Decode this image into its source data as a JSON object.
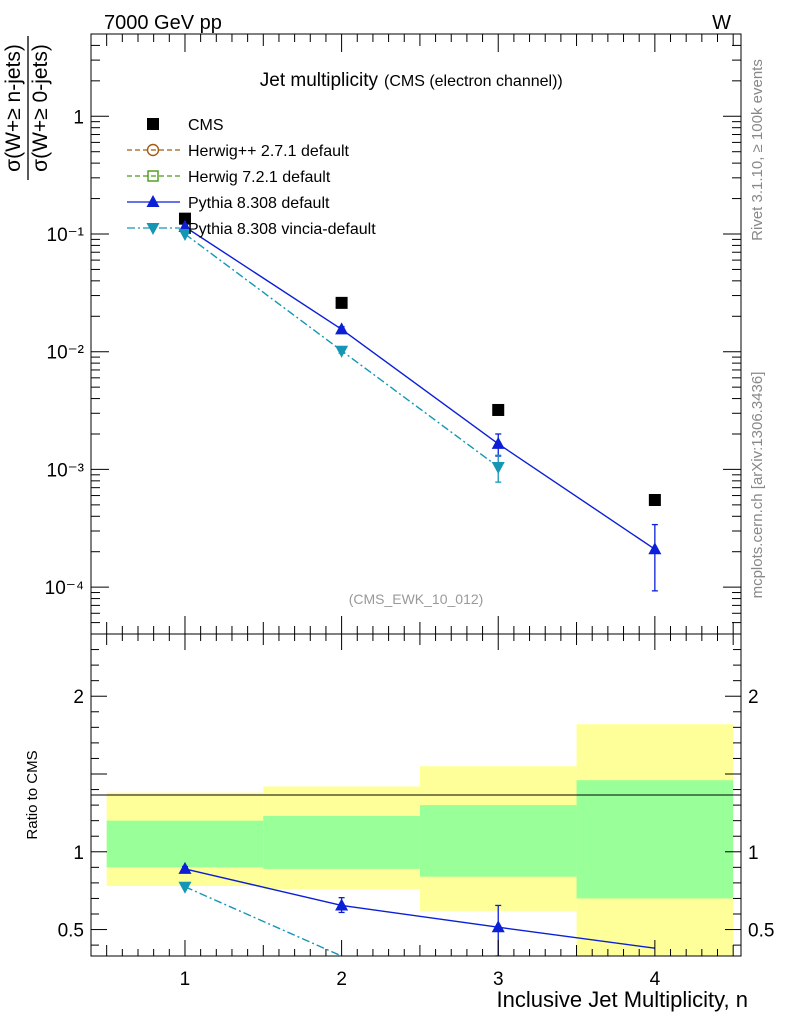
{
  "header": {
    "energy_label": "7000 GeV pp",
    "process_label": "W"
  },
  "side_labels": {
    "rivet": "Rivet 3.1.10, ≥ 100k events",
    "mcplots": "mcplots.cern.ch [arXiv:1306.3436]"
  },
  "chart_data": [
    {
      "type": "line",
      "title": "Jet multiplicity",
      "subtitle": "(CMS (electron channel))",
      "watermark": "(CMS_EWK_10_012)",
      "ylabel_num": "σ(W+≥ n-jets)",
      "ylabel_den": "σ(W+≥ 0-jets)",
      "yscale": "log",
      "ylim": [
        4e-05,
        5
      ],
      "xlim": [
        0.4,
        4.55
      ],
      "x_ticks": [
        1,
        2,
        3,
        4
      ],
      "y_tick_labels": [
        {
          "value": 1,
          "label": "1"
        },
        {
          "value": 0.1,
          "label": "10⁻¹"
        },
        {
          "value": 0.01,
          "label": "10⁻²"
        },
        {
          "value": 0.001,
          "label": "10⁻³"
        },
        {
          "value": 0.0001,
          "label": "10⁻⁴"
        }
      ],
      "legend_position": "top-left",
      "series": [
        {
          "name": "CMS",
          "style": "markers",
          "marker": "square",
          "color": "#000000",
          "x": [
            1,
            2,
            3,
            4
          ],
          "y": [
            0.135,
            0.026,
            0.0032,
            0.00055
          ]
        },
        {
          "name": "Herwig++ 2.7.1 default",
          "style": "legend-only",
          "marker": "circle-open",
          "line": "dashed",
          "color": "#a35a12",
          "x": [],
          "y": []
        },
        {
          "name": "Herwig 7.2.1 default",
          "style": "legend-only",
          "marker": "square-open",
          "line": "dashed",
          "color": "#4a9a1a",
          "x": [],
          "y": []
        },
        {
          "name": "Pythia 8.308 default",
          "style": "line",
          "marker": "triangle-up",
          "line": "solid",
          "color": "#0b1fd6",
          "x": [
            1,
            2,
            3,
            4
          ],
          "y": [
            0.115,
            0.0155,
            0.00165,
            0.00021
          ],
          "yerr_low": [
            0.112,
            0.0148,
            0.0013,
            9.3e-05
          ],
          "yerr_high": [
            0.118,
            0.0163,
            0.002,
            0.00034
          ]
        },
        {
          "name": "Pythia 8.308 vincia-default",
          "style": "line",
          "marker": "triangle-down",
          "line": "dashdot",
          "color": "#1596b4",
          "x": [
            1,
            2,
            3
          ],
          "y": [
            0.1,
            0.0102,
            0.00105
          ],
          "yerr_low": [
            0.098,
            0.0097,
            0.00078
          ],
          "yerr_high": [
            0.102,
            0.0107,
            0.00132
          ]
        }
      ]
    },
    {
      "type": "line",
      "xlabel": "Inclusive Jet Multiplicity, n",
      "ylabel": "Ratio to CMS",
      "ylim": [
        0.33,
        2.4
      ],
      "xlim": [
        0.4,
        4.55
      ],
      "x_ticks": [
        1,
        2,
        3,
        4
      ],
      "y_tick_labels": [
        {
          "value": 2,
          "label": "2"
        },
        {
          "value": 1,
          "label": "1"
        },
        {
          "value": 0.5,
          "label": "0.5"
        }
      ],
      "bands": {
        "bin_edges": [
          0.5,
          1.5,
          2.5,
          3.5,
          4.5
        ],
        "yellow": {
          "color": "#ffff99",
          "low": [
            0.78,
            0.76,
            0.62,
            0.3
          ],
          "high": [
            1.38,
            1.42,
            1.55,
            1.82
          ]
        },
        "green": {
          "color": "#99ff99",
          "low": [
            0.9,
            0.89,
            0.84,
            0.7
          ],
          "high": [
            1.2,
            1.23,
            1.3,
            1.46
          ]
        }
      },
      "series": [
        {
          "name": "Pythia 8.308 default",
          "marker": "triangle-up",
          "line": "solid",
          "color": "#0b1fd6",
          "x": [
            1,
            2,
            3,
            4
          ],
          "y": [
            0.89,
            0.655,
            0.515,
            0.38
          ],
          "yerr_low": [
            0.87,
            0.61,
            0.33,
            0.38
          ],
          "yerr_high": [
            0.905,
            0.705,
            0.655,
            0.38
          ]
        },
        {
          "name": "Pythia 8.308 vincia-default",
          "marker": "triangle-down",
          "line": "dashdot",
          "color": "#1596b4",
          "x": [
            1,
            2
          ],
          "y": [
            0.775,
            0.33
          ]
        }
      ]
    }
  ]
}
